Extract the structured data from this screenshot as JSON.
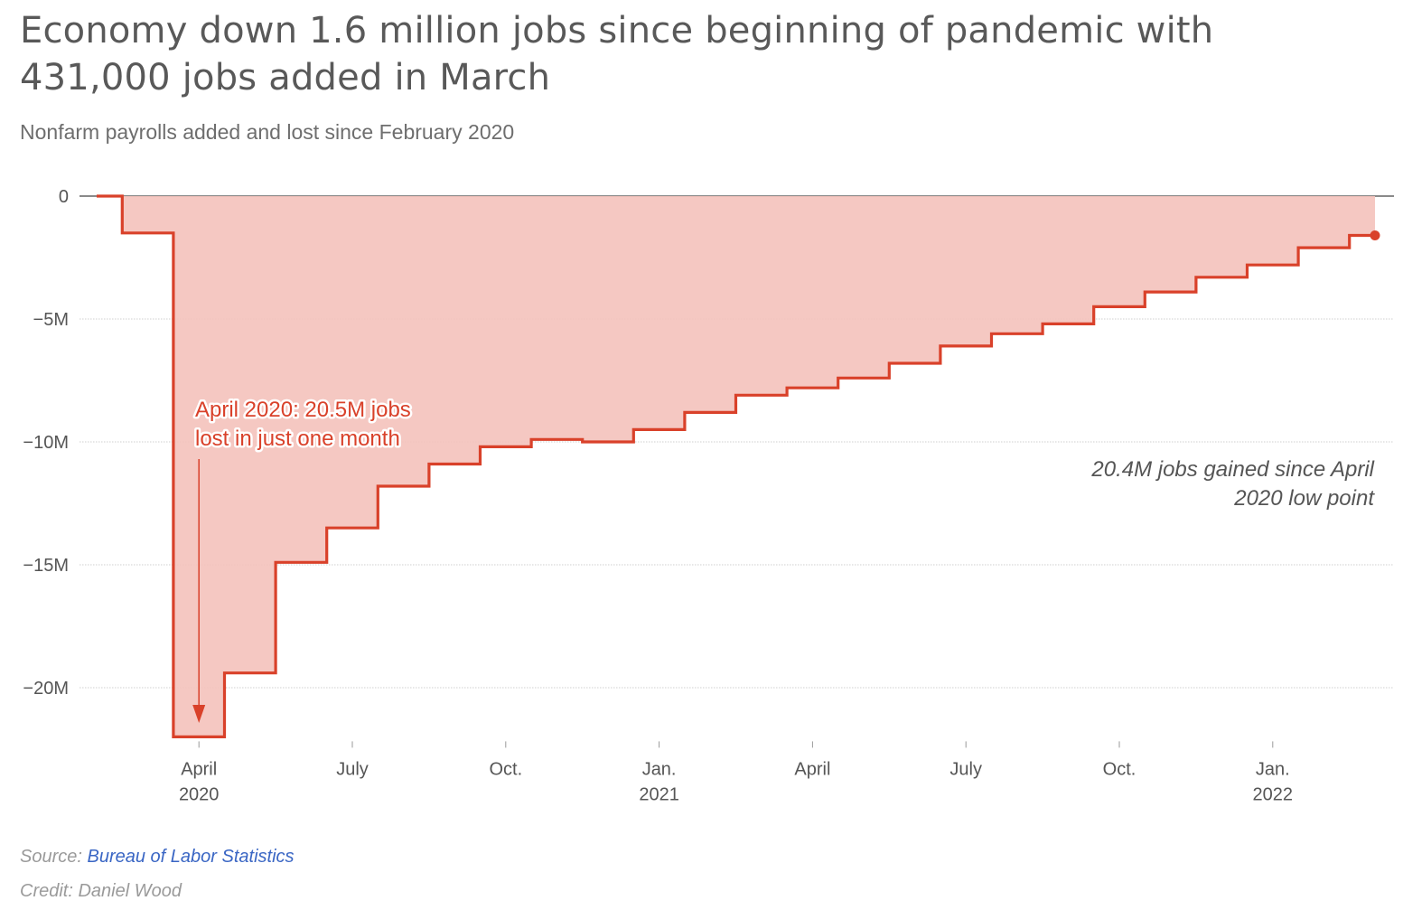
{
  "title": "Economy down 1.6 million jobs since beginning of pandemic with 431,000 jobs added in March",
  "subtitle": "Nonfarm payrolls added and lost since February 2020",
  "source_label": "Source:",
  "source_link": "Bureau of Labor Statistics",
  "credit": "Credit: Daniel Wood",
  "colors": {
    "line": "#d9412a",
    "area": "#f4c2bb",
    "annotation_text": "#d9412a",
    "grid": "#cfcfcf",
    "zero_line": "#444444",
    "axis_text": "#555555"
  },
  "chart_data": {
    "type": "area",
    "step": true,
    "title": "Economy down 1.6 million jobs since beginning of pandemic with 431,000 jobs added in March",
    "subtitle": "Nonfarm payrolls added and lost since February 2020",
    "xlabel": "",
    "ylabel": "",
    "ylim": [
      -22,
      0
    ],
    "y_ticks": [
      0,
      -5,
      -10,
      -15,
      -20
    ],
    "y_tick_labels": [
      "0",
      "−5M",
      "−10M",
      "−15M",
      "−20M"
    ],
    "x_range": [
      "2020-02",
      "2022-03"
    ],
    "x_ticks": [
      {
        "month": "2020-04",
        "line1": "April",
        "line2": "2020"
      },
      {
        "month": "2020-07",
        "line1": "July",
        "line2": ""
      },
      {
        "month": "2020-10",
        "line1": "Oct.",
        "line2": ""
      },
      {
        "month": "2021-01",
        "line1": "Jan.",
        "line2": "2021"
      },
      {
        "month": "2021-04",
        "line1": "April",
        "line2": ""
      },
      {
        "month": "2021-07",
        "line1": "July",
        "line2": ""
      },
      {
        "month": "2021-10",
        "line1": "Oct.",
        "line2": ""
      },
      {
        "month": "2022-01",
        "line1": "Jan.",
        "line2": "2022"
      }
    ],
    "grid": true,
    "series": [
      {
        "name": "",
        "unit": "millions of jobs vs. February 2020",
        "x": [
          "2020-02",
          "2020-03",
          "2020-04",
          "2020-05",
          "2020-06",
          "2020-07",
          "2020-08",
          "2020-09",
          "2020-10",
          "2020-11",
          "2020-12",
          "2021-01",
          "2021-02",
          "2021-03",
          "2021-04",
          "2021-05",
          "2021-06",
          "2021-07",
          "2021-08",
          "2021-09",
          "2021-10",
          "2021-11",
          "2021-12",
          "2022-01",
          "2022-02",
          "2022-03"
        ],
        "values": [
          0,
          -1.5,
          -22.0,
          -19.4,
          -14.9,
          -13.5,
          -11.8,
          -10.9,
          -10.2,
          -9.9,
          -10.0,
          -9.5,
          -8.8,
          -8.1,
          -7.8,
          -7.4,
          -6.8,
          -6.1,
          -5.6,
          -5.2,
          -4.5,
          -3.9,
          -3.3,
          -2.8,
          -2.1,
          -1.6
        ]
      }
    ],
    "annotations": [
      {
        "id": "low",
        "lines": [
          "April 2020: 20.5M jobs",
          "lost in just one month"
        ],
        "arrow_to": "2020-04",
        "style": "red"
      },
      {
        "id": "gain",
        "lines": [
          "20.4M jobs gained since April",
          "2020 low point"
        ],
        "style": "italic-gray"
      }
    ]
  }
}
